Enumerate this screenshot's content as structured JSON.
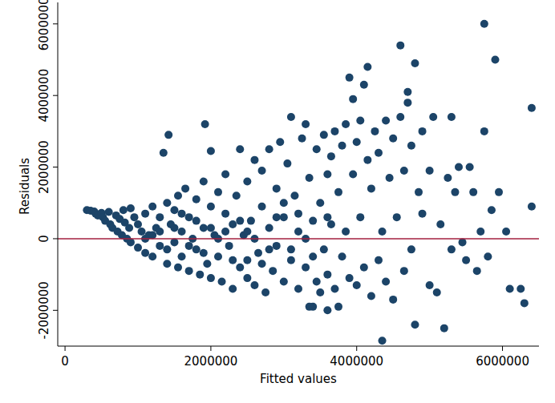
{
  "chart_data": {
    "type": "scatter",
    "x_label": "Fitted values",
    "y_label": "Residuals",
    "color": "#1c4468",
    "marker": "circle",
    "grid": false,
    "yline": 0,
    "xlim": [
      -100000,
      6500000
    ],
    "ylim": [
      -3000000,
      6600000
    ],
    "xticks": [
      0,
      2000000,
      4000000,
      6000000
    ],
    "yticks": [
      -2000000,
      0,
      2000000,
      4000000,
      6000000
    ],
    "x": [
      300000,
      350000,
      400000,
      420000,
      450000,
      500000,
      520000,
      550000,
      600000,
      620000,
      650000,
      700000,
      720000,
      750000,
      780000,
      800000,
      820000,
      850000,
      880000,
      900000,
      900000,
      950000,
      1000000,
      1000000,
      1050000,
      1100000,
      1100000,
      1150000,
      1200000,
      1200000,
      1250000,
      1300000,
      1300000,
      1350000,
      1400000,
      1400000,
      1420000,
      1450000,
      1500000,
      1500000,
      1550000,
      1550000,
      1600000,
      1600000,
      1650000,
      1700000,
      1700000,
      1750000,
      1800000,
      1800000,
      1850000,
      1900000,
      1900000,
      1920000,
      1950000,
      2000000,
      2000000,
      2000000,
      2050000,
      2100000,
      2100000,
      2150000,
      2200000,
      2200000,
      2250000,
      2300000,
      2300000,
      2350000,
      2400000,
      2400000,
      2450000,
      2500000,
      2500000,
      2550000,
      2600000,
      2600000,
      2650000,
      2700000,
      2700000,
      2750000,
      2800000,
      2800000,
      2850000,
      2900000,
      2900000,
      2950000,
      3000000,
      3000000,
      3050000,
      3100000,
      3100000,
      3150000,
      3200000,
      3200000,
      3250000,
      3300000,
      3300000,
      3350000,
      3400000,
      3400000,
      3450000,
      3450000,
      3500000,
      3500000,
      3550000,
      3550000,
      3600000,
      3600000,
      3650000,
      3650000,
      3700000,
      3700000,
      3750000,
      3750000,
      3800000,
      3800000,
      3850000,
      3850000,
      3900000,
      3900000,
      3950000,
      3950000,
      4000000,
      4000000,
      4050000,
      4050000,
      4100000,
      4100000,
      4150000,
      4150000,
      4200000,
      4200000,
      4250000,
      4300000,
      4300000,
      4350000,
      4350000,
      4400000,
      4400000,
      4450000,
      4500000,
      4500000,
      4550000,
      4600000,
      4600000,
      4650000,
      4650000,
      4700000,
      4700000,
      4750000,
      4750000,
      4800000,
      4800000,
      4850000,
      4900000,
      4900000,
      5000000,
      5000000,
      5050000,
      5100000,
      5150000,
      5200000,
      5250000,
      5300000,
      5300000,
      5350000,
      5400000,
      5450000,
      5500000,
      5550000,
      5600000,
      5650000,
      5700000,
      5750000,
      5750000,
      5800000,
      5850000,
      5900000,
      5950000,
      6050000,
      6100000,
      6250000,
      6300000,
      6400000,
      6400000,
      1100000,
      1300000,
      1500000,
      1700000,
      1900000,
      2100000,
      2300000,
      2500000,
      2700000,
      2900000,
      3100000,
      3300000,
      2200000,
      2400000,
      2600000,
      2800000,
      3000000,
      3200000,
      1600000,
      1800000,
      2000000,
      1400000,
      1200000,
      2500000,
      3400000,
      3600000,
      3350000,
      3600000
    ],
    "values": [
      800000,
      780000,
      760000,
      700000,
      650000,
      720000,
      600000,
      500000,
      750000,
      400000,
      300000,
      650000,
      200000,
      550000,
      100000,
      800000,
      450000,
      0,
      300000,
      850000,
      -100000,
      600000,
      -250000,
      400000,
      200000,
      700000,
      -400000,
      100000,
      900000,
      -500000,
      300000,
      -200000,
      600000,
      2400000,
      -700000,
      1000000,
      2900000,
      400000,
      -100000,
      800000,
      -800000,
      1200000,
      200000,
      -500000,
      1400000,
      -900000,
      600000,
      0,
      1100000,
      -300000,
      -1000000,
      1600000,
      300000,
      3200000,
      -700000,
      2450000,
      900000,
      -1100000,
      100000,
      1300000,
      -500000,
      -1200000,
      700000,
      1800000,
      -200000,
      -1400000,
      400000,
      1200000,
      -800000,
      2500000,
      100000,
      1600000,
      -1100000,
      500000,
      -1300000,
      2200000,
      -400000,
      900000,
      1900000,
      -1500000,
      300000,
      2500000,
      -900000,
      1400000,
      -200000,
      2700000,
      -1200000,
      600000,
      2100000,
      -600000,
      3400000,
      1200000,
      -1400000,
      200000,
      2800000,
      3200000,
      -800000,
      1700000,
      -1900000,
      500000,
      2500000,
      -1200000,
      1000000,
      -1500000,
      2900000,
      -300000,
      1800000,
      -1000000,
      2300000,
      400000,
      -1400000,
      3000000,
      1300000,
      -1900000,
      2600000,
      -500000,
      3200000,
      200000,
      -1100000,
      4500000,
      1800000,
      3900000,
      -1300000,
      2700000,
      600000,
      3300000,
      4300000,
      -800000,
      2200000,
      4800000,
      -1600000,
      1400000,
      3000000,
      -600000,
      2400000,
      -2850000,
      200000,
      3300000,
      -1200000,
      1700000,
      -1700000,
      2800000,
      600000,
      3400000,
      5400000,
      -900000,
      1900000,
      3800000,
      4100000,
      -300000,
      2600000,
      4900000,
      -2400000,
      1300000,
      3000000,
      700000,
      -1300000,
      1900000,
      3400000,
      -1500000,
      400000,
      -2500000,
      1700000,
      3400000,
      -300000,
      1300000,
      2000000,
      -100000,
      -600000,
      2000000,
      1300000,
      -900000,
      200000,
      3000000,
      6000000,
      -500000,
      800000,
      5000000,
      1300000,
      200000,
      -1400000,
      -1400000,
      -1800000,
      3650000,
      900000,
      0,
      200000,
      300000,
      -200000,
      -400000,
      0,
      -600000,
      200000,
      -700000,
      600000,
      -300000,
      0,
      200000,
      500000,
      0,
      -300000,
      1000000,
      700000,
      700000,
      500000,
      300000,
      -300000,
      100000,
      -600000,
      -500000,
      600000,
      -1900000,
      -2000000
    ]
  }
}
